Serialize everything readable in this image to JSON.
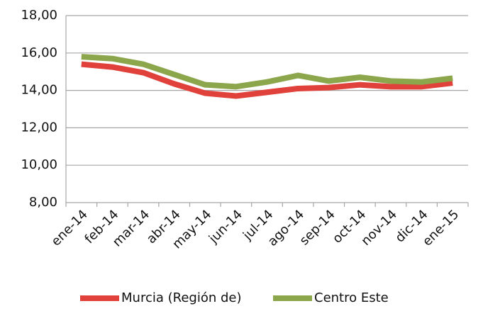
{
  "chart_data": {
    "type": "line",
    "categories": [
      "ene-14",
      "feb-14",
      "mar-14",
      "abr-14",
      "may-14",
      "jun-14",
      "jul-14",
      "ago-14",
      "sep-14",
      "oct-14",
      "nov-14",
      "dic-14",
      "ene-15"
    ],
    "series": [
      {
        "name": "Murcia (Región de)",
        "color": "#e0413a",
        "values": [
          15.4,
          15.25,
          14.95,
          14.35,
          13.85,
          13.7,
          13.9,
          14.1,
          14.15,
          14.3,
          14.2,
          14.2,
          14.4
        ]
      },
      {
        "name": "Centro Este",
        "color": "#8ba64b",
        "values": [
          15.8,
          15.7,
          15.4,
          14.85,
          14.3,
          14.2,
          14.45,
          14.8,
          14.5,
          14.7,
          14.5,
          14.45,
          14.65
        ]
      }
    ],
    "ylim": [
      8,
      18
    ],
    "yticks": [
      {
        "value": 8,
        "label": "8,00"
      },
      {
        "value": 10,
        "label": "10,00"
      },
      {
        "value": 12,
        "label": "12,00"
      },
      {
        "value": 14,
        "label": "14,00"
      },
      {
        "value": 16,
        "label": "16,00"
      },
      {
        "value": 18,
        "label": "18,00"
      }
    ],
    "grid": true,
    "legend": "bottom"
  }
}
